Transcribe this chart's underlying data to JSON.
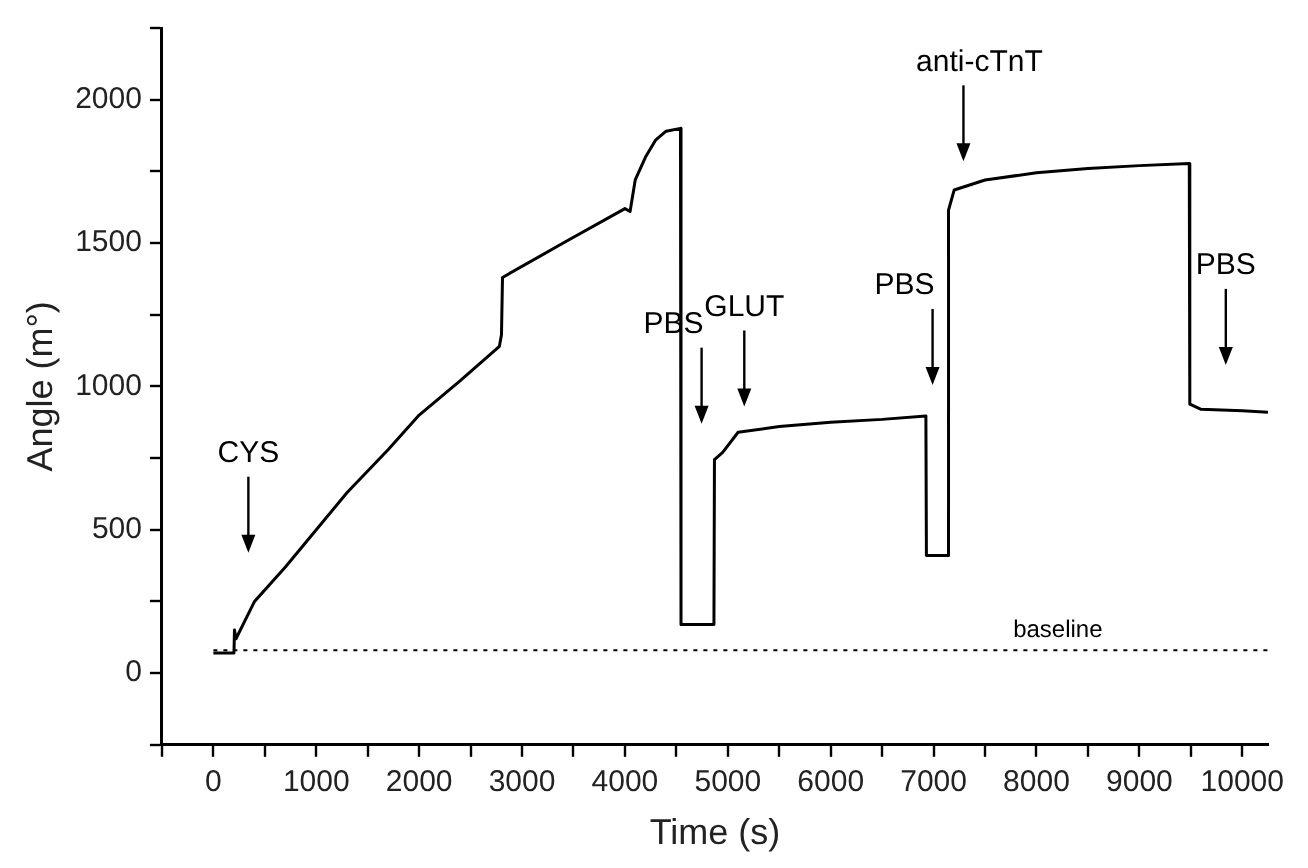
{
  "chart_data": {
    "type": "line",
    "xlabel": "Time (s)",
    "ylabel": "Angle (m°)",
    "x": [
      0,
      200,
      205,
      220,
      400,
      700,
      1000,
      1300,
      1700,
      2000,
      2400,
      2780,
      2800,
      2810,
      3400,
      4000,
      4050,
      4100,
      4200,
      4300,
      4400,
      4540,
      4545,
      4865,
      4870,
      4950,
      5100,
      5500,
      6000,
      6500,
      6925,
      6930,
      7140,
      7145,
      7200,
      7500,
      8000,
      8500,
      9000,
      9485,
      9490,
      9600,
      10000,
      10250
    ],
    "series": [
      {
        "color": "#000000",
        "values": [
          70,
          70,
          150,
          120,
          250,
          370,
          500,
          630,
          780,
          900,
          1020,
          1140,
          1180,
          1380,
          1500,
          1620,
          1610,
          1720,
          1800,
          1860,
          1890,
          1900,
          170,
          170,
          745,
          770,
          840,
          860,
          875,
          885,
          897,
          410,
          410,
          1615,
          1685,
          1720,
          1745,
          1760,
          1770,
          1777,
          938,
          920,
          915,
          910
        ]
      }
    ],
    "xlim": [
      -500,
      10250
    ],
    "ylim": [
      -250,
      2250
    ],
    "xticks": [
      {
        "value": -500,
        "label": null
      },
      0,
      {
        "value": 500,
        "label": null
      },
      1000,
      {
        "value": 1500,
        "label": null
      },
      2000,
      {
        "value": 2500,
        "label": null
      },
      3000,
      {
        "value": 3500,
        "label": null
      },
      4000,
      {
        "value": 4500,
        "label": null
      },
      5000,
      {
        "value": 5500,
        "label": null
      },
      6000,
      {
        "value": 6500,
        "label": null
      },
      7000,
      {
        "value": 7500,
        "label": null
      },
      8000,
      {
        "value": 8500,
        "label": null
      },
      9000,
      {
        "value": 9500,
        "label": null
      },
      10000
    ],
    "yticks": [
      {
        "value": -250,
        "label": null
      },
      0,
      {
        "value": 250,
        "label": null
      },
      500,
      {
        "value": 750,
        "label": null
      },
      1000,
      {
        "value": 1250,
        "label": null
      },
      1500,
      {
        "value": 1750,
        "label": null
      },
      2000,
      {
        "value": 2250,
        "label": null
      }
    ],
    "ref_lines": [
      {
        "axis": "y",
        "value": 80,
        "label": "baseline",
        "color": "#000000",
        "line_style": "dotted"
      }
    ],
    "annotations": [
      "CYS",
      "PBS",
      "GLUT",
      "PBS",
      "anti-cTnT",
      "PBS"
    ],
    "grid": false,
    "legend": false,
    "marker": "none",
    "line_style": "solid"
  }
}
